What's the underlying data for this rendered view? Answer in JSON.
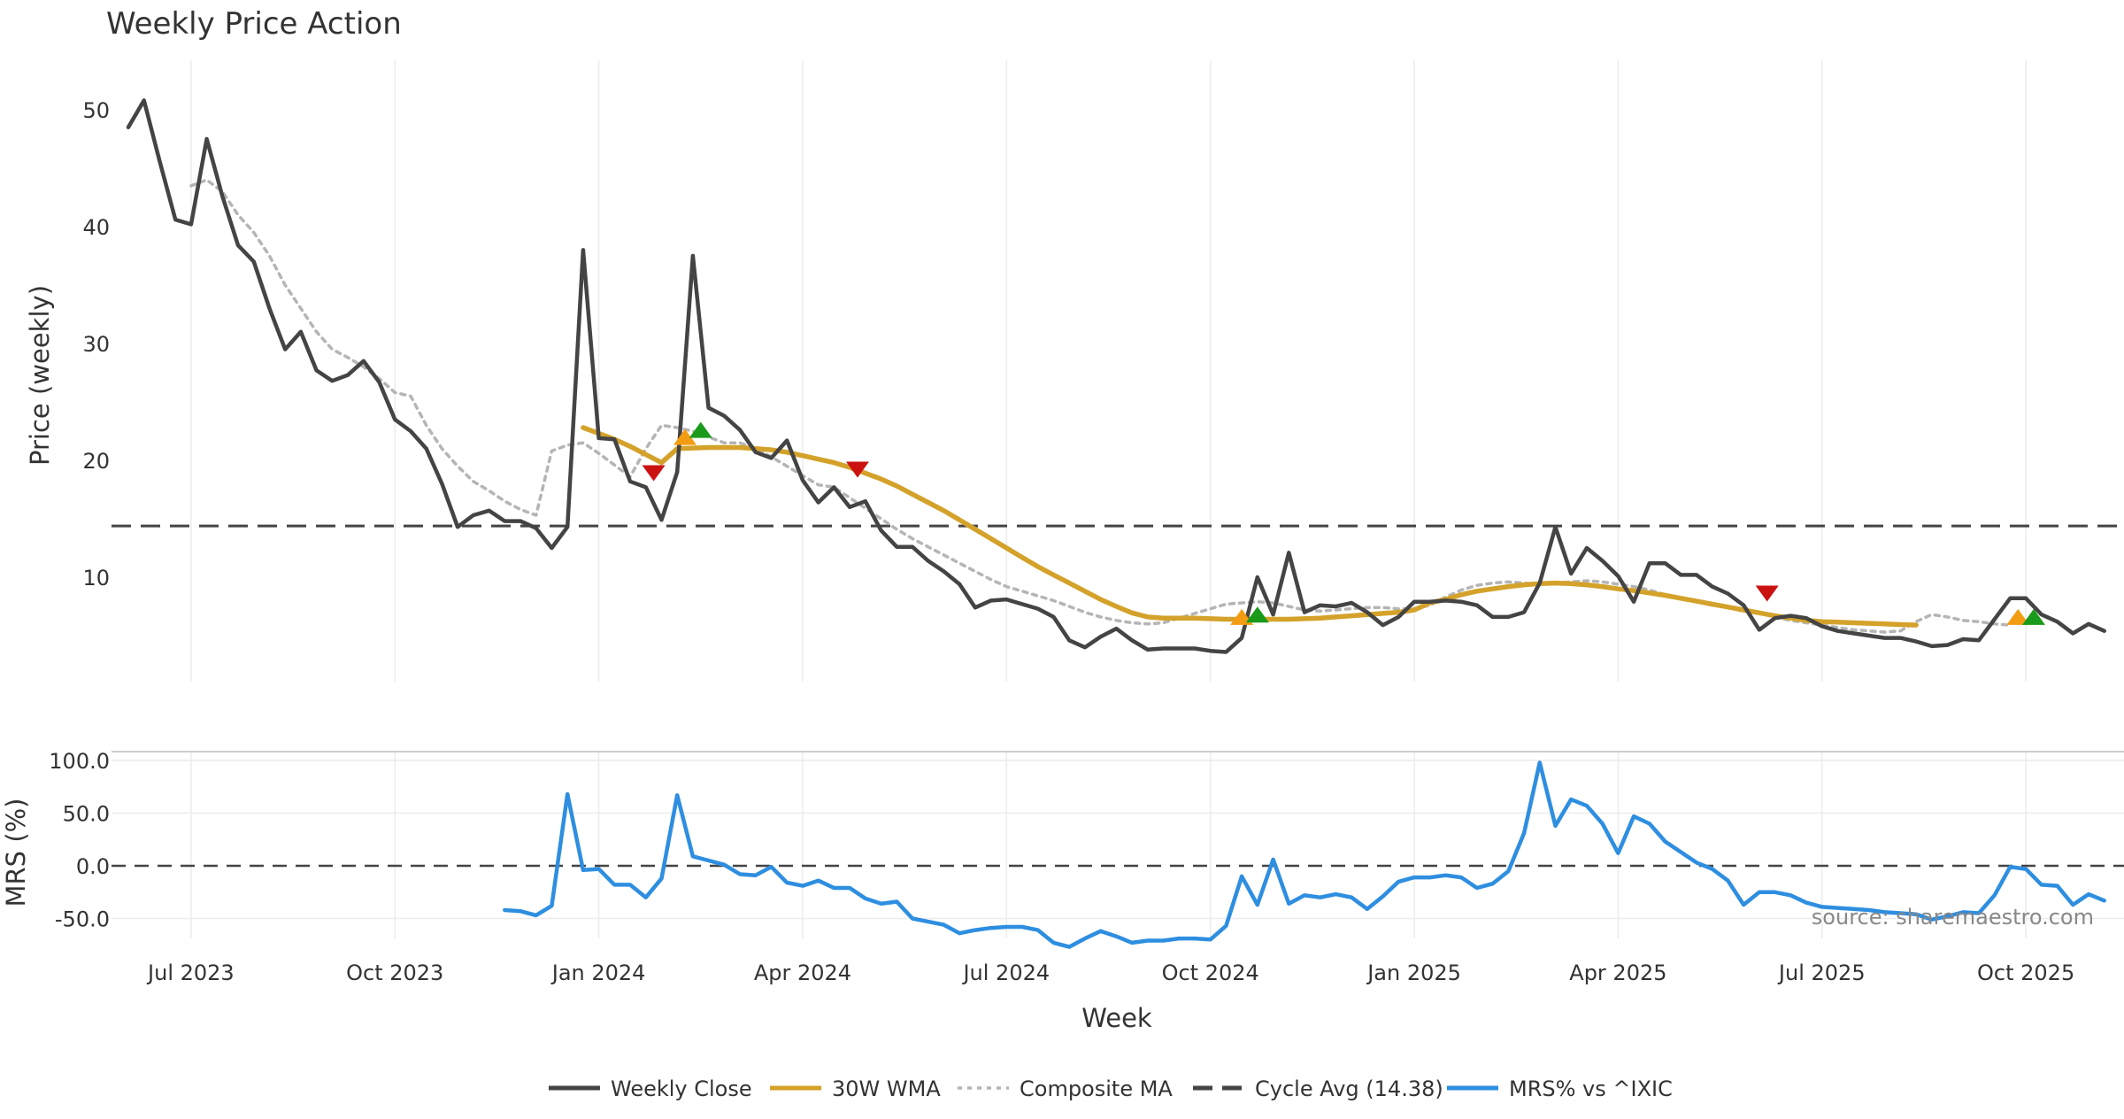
{
  "chart_data": {
    "type": "line",
    "title": "Weekly Price Action",
    "xlabel": "Week",
    "source": "source: sharemaestro.com",
    "x_ticks": [
      {
        "label": "Jul 2023",
        "week": 4
      },
      {
        "label": "Oct 2023",
        "week": 17
      },
      {
        "label": "Jan 2024",
        "week": 30
      },
      {
        "label": "Apr 2024",
        "week": 43
      },
      {
        "label": "Jul 2024",
        "week": 56
      },
      {
        "label": "Oct 2024",
        "week": 69
      },
      {
        "label": "Jan 2025",
        "week": 82
      },
      {
        "label": "Apr 2025",
        "week": 95
      },
      {
        "label": "Jul 2025",
        "week": 108
      },
      {
        "label": "Oct 2025",
        "week": 121
      }
    ],
    "price_panel": {
      "ylabel": "Price (weekly)",
      "ylim": [
        0.5,
        54
      ],
      "yticks": [
        10,
        20,
        30,
        40,
        50
      ],
      "cycle_avg": 14.38,
      "series": [
        {
          "name": "Weekly Close",
          "color": "#444444",
          "style": "solid",
          "start_week": 0,
          "values": [
            48.5,
            50.8,
            45.6,
            40.6,
            40.2,
            47.5,
            42.6,
            38.4,
            37.0,
            33.0,
            29.5,
            31.0,
            27.7,
            26.8,
            27.3,
            28.5,
            26.7,
            23.5,
            22.5,
            21.0,
            18.0,
            14.3,
            15.3,
            15.7,
            14.8,
            14.8,
            14.2,
            12.5,
            14.3,
            38.0,
            21.9,
            21.8,
            18.2,
            17.7,
            14.9,
            19.0,
            37.5,
            24.5,
            23.8,
            22.6,
            20.7,
            20.2,
            21.7,
            18.3,
            16.4,
            17.7,
            16.0,
            16.5,
            14.0,
            12.6,
            12.6,
            11.4,
            10.5,
            9.4,
            7.4,
            8.0,
            8.1,
            7.7,
            7.3,
            6.6,
            4.6,
            4.0,
            4.9,
            5.6,
            4.6,
            3.8,
            3.9,
            3.9,
            3.9,
            3.7,
            3.6,
            4.8,
            10.0,
            6.8,
            12.1,
            7.0,
            7.6,
            7.5,
            7.8,
            7.0,
            5.9,
            6.6,
            7.9,
            7.9,
            8.0,
            7.9,
            7.6,
            6.6,
            6.6,
            7.0,
            9.5,
            14.3,
            10.3,
            12.5,
            11.4,
            10.1,
            7.9,
            11.2,
            11.2,
            10.2,
            10.2,
            9.2,
            8.6,
            7.6,
            5.5,
            6.5,
            6.7,
            6.5,
            5.8,
            5.4,
            5.2,
            5.0,
            4.8,
            4.8,
            4.5,
            4.1,
            4.2,
            4.7,
            4.6,
            6.4,
            8.2,
            8.2,
            6.8,
            6.2,
            5.2,
            6.0,
            5.4
          ]
        },
        {
          "name": "30W WMA",
          "color": "#d4a22a",
          "style": "solid",
          "start_week": 29,
          "values": [
            22.8,
            22.3,
            21.8,
            21.2,
            20.5,
            19.8,
            21.0,
            21.05,
            21.1,
            21.1,
            21.1,
            21.0,
            20.9,
            20.7,
            20.4,
            20.1,
            19.8,
            19.4,
            18.9,
            18.4,
            17.8,
            17.1,
            16.4,
            15.7,
            14.9,
            14.1,
            13.3,
            12.5,
            11.7,
            10.9,
            10.2,
            9.5,
            8.8,
            8.1,
            7.5,
            6.95,
            6.6,
            6.5,
            6.5,
            6.5,
            6.45,
            6.4,
            6.4,
            6.4,
            6.4,
            6.4,
            6.45,
            6.5,
            6.6,
            6.7,
            6.8,
            6.9,
            7.0,
            7.2,
            7.8,
            8.1,
            8.5,
            8.8,
            9.0,
            9.2,
            9.35,
            9.45,
            9.5,
            9.45,
            9.35,
            9.2,
            9.0,
            8.85,
            8.65,
            8.45,
            8.2,
            7.95,
            7.7,
            7.45,
            7.2,
            6.95,
            6.7,
            6.5,
            6.3,
            6.2,
            6.15,
            6.1,
            6.05,
            6.0,
            5.95,
            5.9
          ]
        },
        {
          "name": "Composite MA",
          "color": "#b5b5b5",
          "style": "dotted",
          "start_week": 4,
          "values": [
            43.5,
            44.0,
            43.0,
            41.0,
            39.5,
            37.5,
            35.0,
            33.0,
            31.0,
            29.5,
            28.8,
            28.0,
            27.0,
            25.8,
            25.5,
            23.0,
            21.0,
            19.5,
            18.2,
            17.4,
            16.5,
            15.8,
            15.3,
            20.8,
            21.3,
            21.5,
            20.6,
            19.6,
            18.6,
            21.0,
            23.0,
            22.8,
            22.5,
            22.0,
            21.5,
            21.5,
            21.0,
            20.3,
            19.5,
            18.7,
            17.9,
            17.7,
            16.8,
            15.9,
            15.0,
            14.1,
            13.3,
            12.6,
            11.9,
            11.2,
            10.5,
            9.8,
            9.2,
            8.8,
            8.4,
            8.0,
            7.5,
            7.0,
            6.6,
            6.3,
            6.1,
            6.0,
            6.1,
            6.5,
            6.9,
            7.3,
            7.7,
            7.8,
            7.9,
            7.8,
            7.5,
            7.2,
            7.1,
            7.2,
            7.3,
            7.4,
            7.4,
            7.3,
            7.3,
            7.6,
            8.3,
            8.9,
            9.3,
            9.5,
            9.6,
            9.5,
            9.4,
            9.5,
            9.6,
            9.7,
            9.6,
            9.4,
            9.2,
            8.9,
            8.5,
            8.2,
            7.9,
            7.6,
            7.4,
            7.1,
            6.9,
            6.6,
            6.3,
            6.1,
            5.9,
            5.7,
            5.5,
            5.4,
            5.3,
            5.4,
            6.2,
            6.8,
            6.6,
            6.3,
            6.2,
            6.0,
            5.9
          ]
        }
      ],
      "markers": [
        {
          "week": 33.5,
          "price": 18.9,
          "shape": "down",
          "color": "#cc1111"
        },
        {
          "week": 35.5,
          "price": 22.0,
          "shape": "up",
          "color": "#f39c12"
        },
        {
          "week": 36.5,
          "price": 22.6,
          "shape": "up",
          "color": "#1a9a1a"
        },
        {
          "week": 46.5,
          "price": 19.2,
          "shape": "down",
          "color": "#cc1111"
        },
        {
          "week": 71.0,
          "price": 6.6,
          "shape": "up",
          "color": "#f39c12"
        },
        {
          "week": 72.0,
          "price": 6.8,
          "shape": "up",
          "color": "#1a9a1a"
        },
        {
          "week": 104.5,
          "price": 8.6,
          "shape": "down",
          "color": "#cc1111"
        },
        {
          "week": 120.5,
          "price": 6.6,
          "shape": "up",
          "color": "#f39c12"
        },
        {
          "week": 121.5,
          "price": 6.6,
          "shape": "up",
          "color": "#1a9a1a"
        }
      ]
    },
    "mrs_panel": {
      "ylabel": "MRS (%)",
      "ylim": [
        -70,
        103
      ],
      "yticks": [
        {
          "value": 100,
          "label": "100.0"
        },
        {
          "value": 50,
          "label": "50.0"
        },
        {
          "value": 0,
          "label": "0.0"
        },
        {
          "value": -50,
          "label": "-50.0"
        }
      ],
      "zero_line": 0,
      "series": {
        "name": "MRS% vs ^IXIC",
        "color": "#2e8ee0",
        "style": "solid",
        "start_week": 24,
        "values": [
          -42,
          -43,
          -47,
          -38,
          68,
          -4,
          -3,
          -18,
          -18,
          -30,
          -12,
          67,
          9,
          5,
          1,
          -8,
          -9,
          -1,
          -16,
          -19,
          -14,
          -21,
          -21,
          -31,
          -36,
          -34,
          -50,
          -53,
          -56,
          -64,
          -61,
          -59,
          -58,
          -58,
          -61,
          -73,
          -77,
          -69,
          -62,
          -67,
          -73,
          -71,
          -71,
          -69,
          -69,
          -70,
          -57,
          -10,
          -37,
          6,
          -36,
          -28,
          -30,
          -27,
          -30,
          -41,
          -29,
          -15,
          -11,
          -11,
          -9,
          -11,
          -21,
          -17,
          -5,
          31,
          98,
          38,
          63,
          57,
          40,
          12,
          47,
          40,
          23,
          13,
          3,
          -3,
          -14,
          -37,
          -25,
          -25,
          -28,
          -35,
          -39,
          -40,
          -41,
          -42,
          -44,
          -45,
          -46,
          -51,
          -48,
          -44,
          -45,
          -28,
          -1,
          -3,
          -18,
          -19,
          -37,
          -27,
          -33
        ]
      }
    },
    "legend": [
      {
        "label": "Weekly Close",
        "color": "#444444",
        "style": "solid"
      },
      {
        "label": "30W WMA",
        "color": "#d4a22a",
        "style": "solid"
      },
      {
        "label": "Composite MA",
        "color": "#b5b5b5",
        "style": "dotted"
      },
      {
        "label": "Cycle Avg (14.38)",
        "color": "#444444",
        "style": "dashed"
      },
      {
        "label": "MRS% vs ^IXIC",
        "color": "#2e8ee0",
        "style": "solid"
      }
    ],
    "legend_position": "bottom-center"
  }
}
